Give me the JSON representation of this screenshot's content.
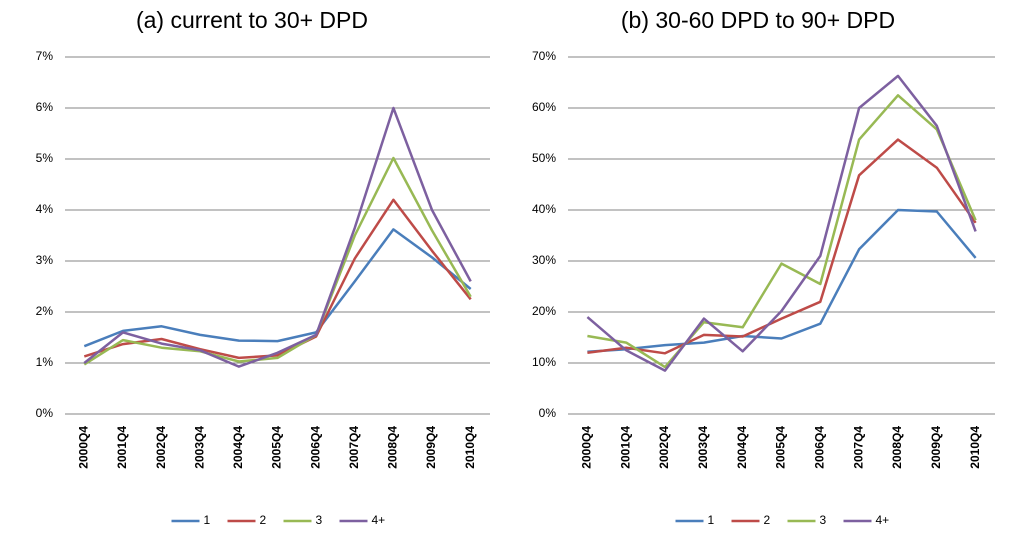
{
  "chart_data": [
    {
      "type": "line",
      "title": "(a)  current to 30+ DPD",
      "categories": [
        "2000Q4",
        "2001Q4",
        "2002Q4",
        "2003Q4",
        "2004Q4",
        "2005Q4",
        "2006Q4",
        "2007Q4",
        "2008Q4",
        "2009Q4",
        "2010Q4"
      ],
      "series": [
        {
          "name": "1",
          "color": "#4a7ebb",
          "values": [
            1.33,
            1.63,
            1.72,
            1.55,
            1.44,
            1.43,
            1.6,
            2.6,
            3.62,
            3.07,
            2.45
          ]
        },
        {
          "name": "2",
          "color": "#be4b48",
          "values": [
            1.13,
            1.37,
            1.47,
            1.27,
            1.1,
            1.15,
            1.52,
            3.05,
            4.2,
            3.2,
            2.25
          ]
        },
        {
          "name": "3",
          "color": "#98b954",
          "values": [
            0.97,
            1.45,
            1.3,
            1.23,
            1.03,
            1.1,
            1.55,
            3.5,
            5.02,
            3.6,
            2.3
          ]
        },
        {
          "name": "4+",
          "color": "#7d60a0",
          "values": [
            1.0,
            1.6,
            1.38,
            1.25,
            0.93,
            1.2,
            1.55,
            3.65,
            6.0,
            4.0,
            2.6
          ]
        }
      ],
      "ylim": [
        0,
        7
      ],
      "yticks": [
        {
          "value": 0,
          "label": "0%"
        },
        {
          "value": 1,
          "label": "1%"
        },
        {
          "value": 2,
          "label": "2%"
        },
        {
          "value": 3,
          "label": "3%"
        },
        {
          "value": 4,
          "label": "4%"
        },
        {
          "value": 5,
          "label": "5%"
        },
        {
          "value": 6,
          "label": "6%"
        },
        {
          "value": 7,
          "label": "7%"
        }
      ],
      "grid": true,
      "legend": "bottom"
    },
    {
      "type": "line",
      "title": "(b)  30-60 DPD to 90+ DPD",
      "categories": [
        "2000Q4",
        "2001Q4",
        "2002Q4",
        "2003Q4",
        "2004Q4",
        "2005Q4",
        "2006Q4",
        "2007Q4",
        "2008Q4",
        "2009Q4",
        "2010Q4"
      ],
      "series": [
        {
          "name": "1",
          "color": "#4a7ebb",
          "values": [
            12.2,
            12.7,
            13.5,
            14,
            15.3,
            14.8,
            17.7,
            32.3,
            40,
            39.7,
            30.6
          ]
        },
        {
          "name": "2",
          "color": "#be4b48",
          "values": [
            12,
            13,
            11.9,
            15.5,
            15.2,
            18.7,
            22,
            46.8,
            53.8,
            48.3,
            37.5
          ]
        },
        {
          "name": "3",
          "color": "#98b954",
          "values": [
            15.3,
            14,
            9.2,
            18,
            17,
            29.5,
            25.5,
            53.8,
            62.5,
            55.8,
            38
          ]
        },
        {
          "name": "4+",
          "color": "#7d60a0",
          "values": [
            19,
            12.5,
            8.5,
            18.7,
            12.3,
            20.2,
            31,
            60,
            66.3,
            56.5,
            35.8
          ]
        }
      ],
      "ylim": [
        0,
        70
      ],
      "yticks": [
        {
          "value": 0,
          "label": "0%"
        },
        {
          "value": 10,
          "label": "10%"
        },
        {
          "value": 20,
          "label": "20%"
        },
        {
          "value": 30,
          "label": "30%"
        },
        {
          "value": 40,
          "label": "40%"
        },
        {
          "value": 50,
          "label": "50%"
        },
        {
          "value": 60,
          "label": "60%"
        },
        {
          "value": 70,
          "label": "70%"
        }
      ],
      "grid": true,
      "legend": "bottom"
    }
  ]
}
